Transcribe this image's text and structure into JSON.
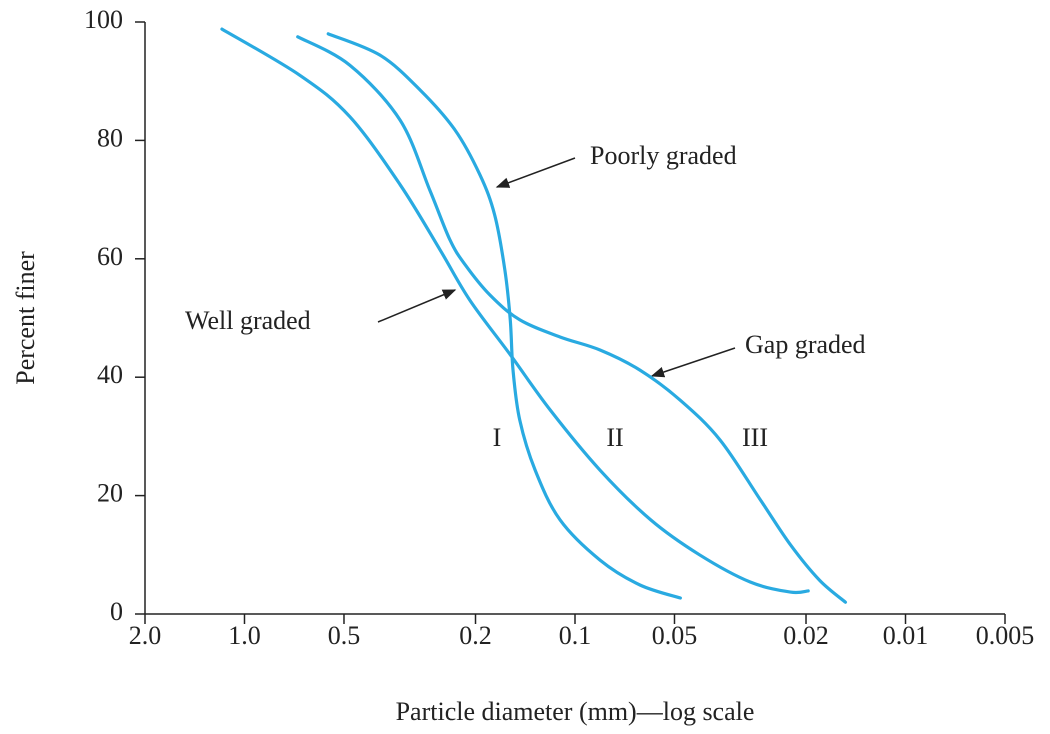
{
  "chart_data": {
    "type": "line",
    "xlabel": "Particle diameter (mm)—log scale",
    "ylabel": "Percent finer",
    "xscale": "log",
    "xlim": [
      2.0,
      0.005
    ],
    "ylim": [
      0,
      100
    ],
    "xticks": [
      {
        "value": 2.0,
        "label": "2.0"
      },
      {
        "value": 1.0,
        "label": "1.0"
      },
      0.5,
      0.2,
      0.1,
      0.05,
      0.02,
      0.01,
      0.005
    ],
    "yticks": [
      0,
      20,
      40,
      60,
      80,
      100
    ],
    "grid": false,
    "series": [
      {
        "name": "Well graded",
        "color": "#29aae1",
        "x": [
          1.17,
          0.68,
          0.48,
          0.338,
          0.256,
          0.208,
          0.157,
          0.119,
          0.084,
          0.059,
          0.042,
          0.0295,
          0.0223,
          0.0197
        ],
        "y": [
          98.8,
          91,
          84,
          72.5,
          61.5,
          53,
          43.8,
          34.5,
          24.3,
          15.9,
          10,
          5.4,
          3.7,
          3.9
        ]
      },
      {
        "name": "Poorly graded",
        "color": "#29aae1",
        "x": [
          0.558,
          0.389,
          0.294,
          0.231,
          0.194,
          0.175,
          0.163,
          0.157,
          0.154,
          0.147,
          0.132,
          0.111,
          0.084,
          0.0636,
          0.048
        ],
        "y": [
          98,
          94.4,
          88.5,
          81.8,
          74.2,
          67.4,
          58.1,
          49.7,
          41.2,
          32.8,
          24.3,
          15.9,
          9.1,
          4.9,
          2.7
        ]
      },
      {
        "name": "Gap graded",
        "color": "#29aae1",
        "x": [
          0.69,
          0.48,
          0.338,
          0.275,
          0.239,
          0.215,
          0.181,
          0.147,
          0.111,
          0.084,
          0.0636,
          0.048,
          0.0364,
          0.0275,
          0.0223,
          0.0182,
          0.0152
        ],
        "y": [
          97.5,
          92.7,
          83.4,
          71.6,
          63.2,
          59,
          53.9,
          49.7,
          46.8,
          44.6,
          41.2,
          36.1,
          29.4,
          19.3,
          11.7,
          5.7,
          2
        ]
      }
    ],
    "annotations": [
      "I",
      "II",
      "III"
    ]
  }
}
